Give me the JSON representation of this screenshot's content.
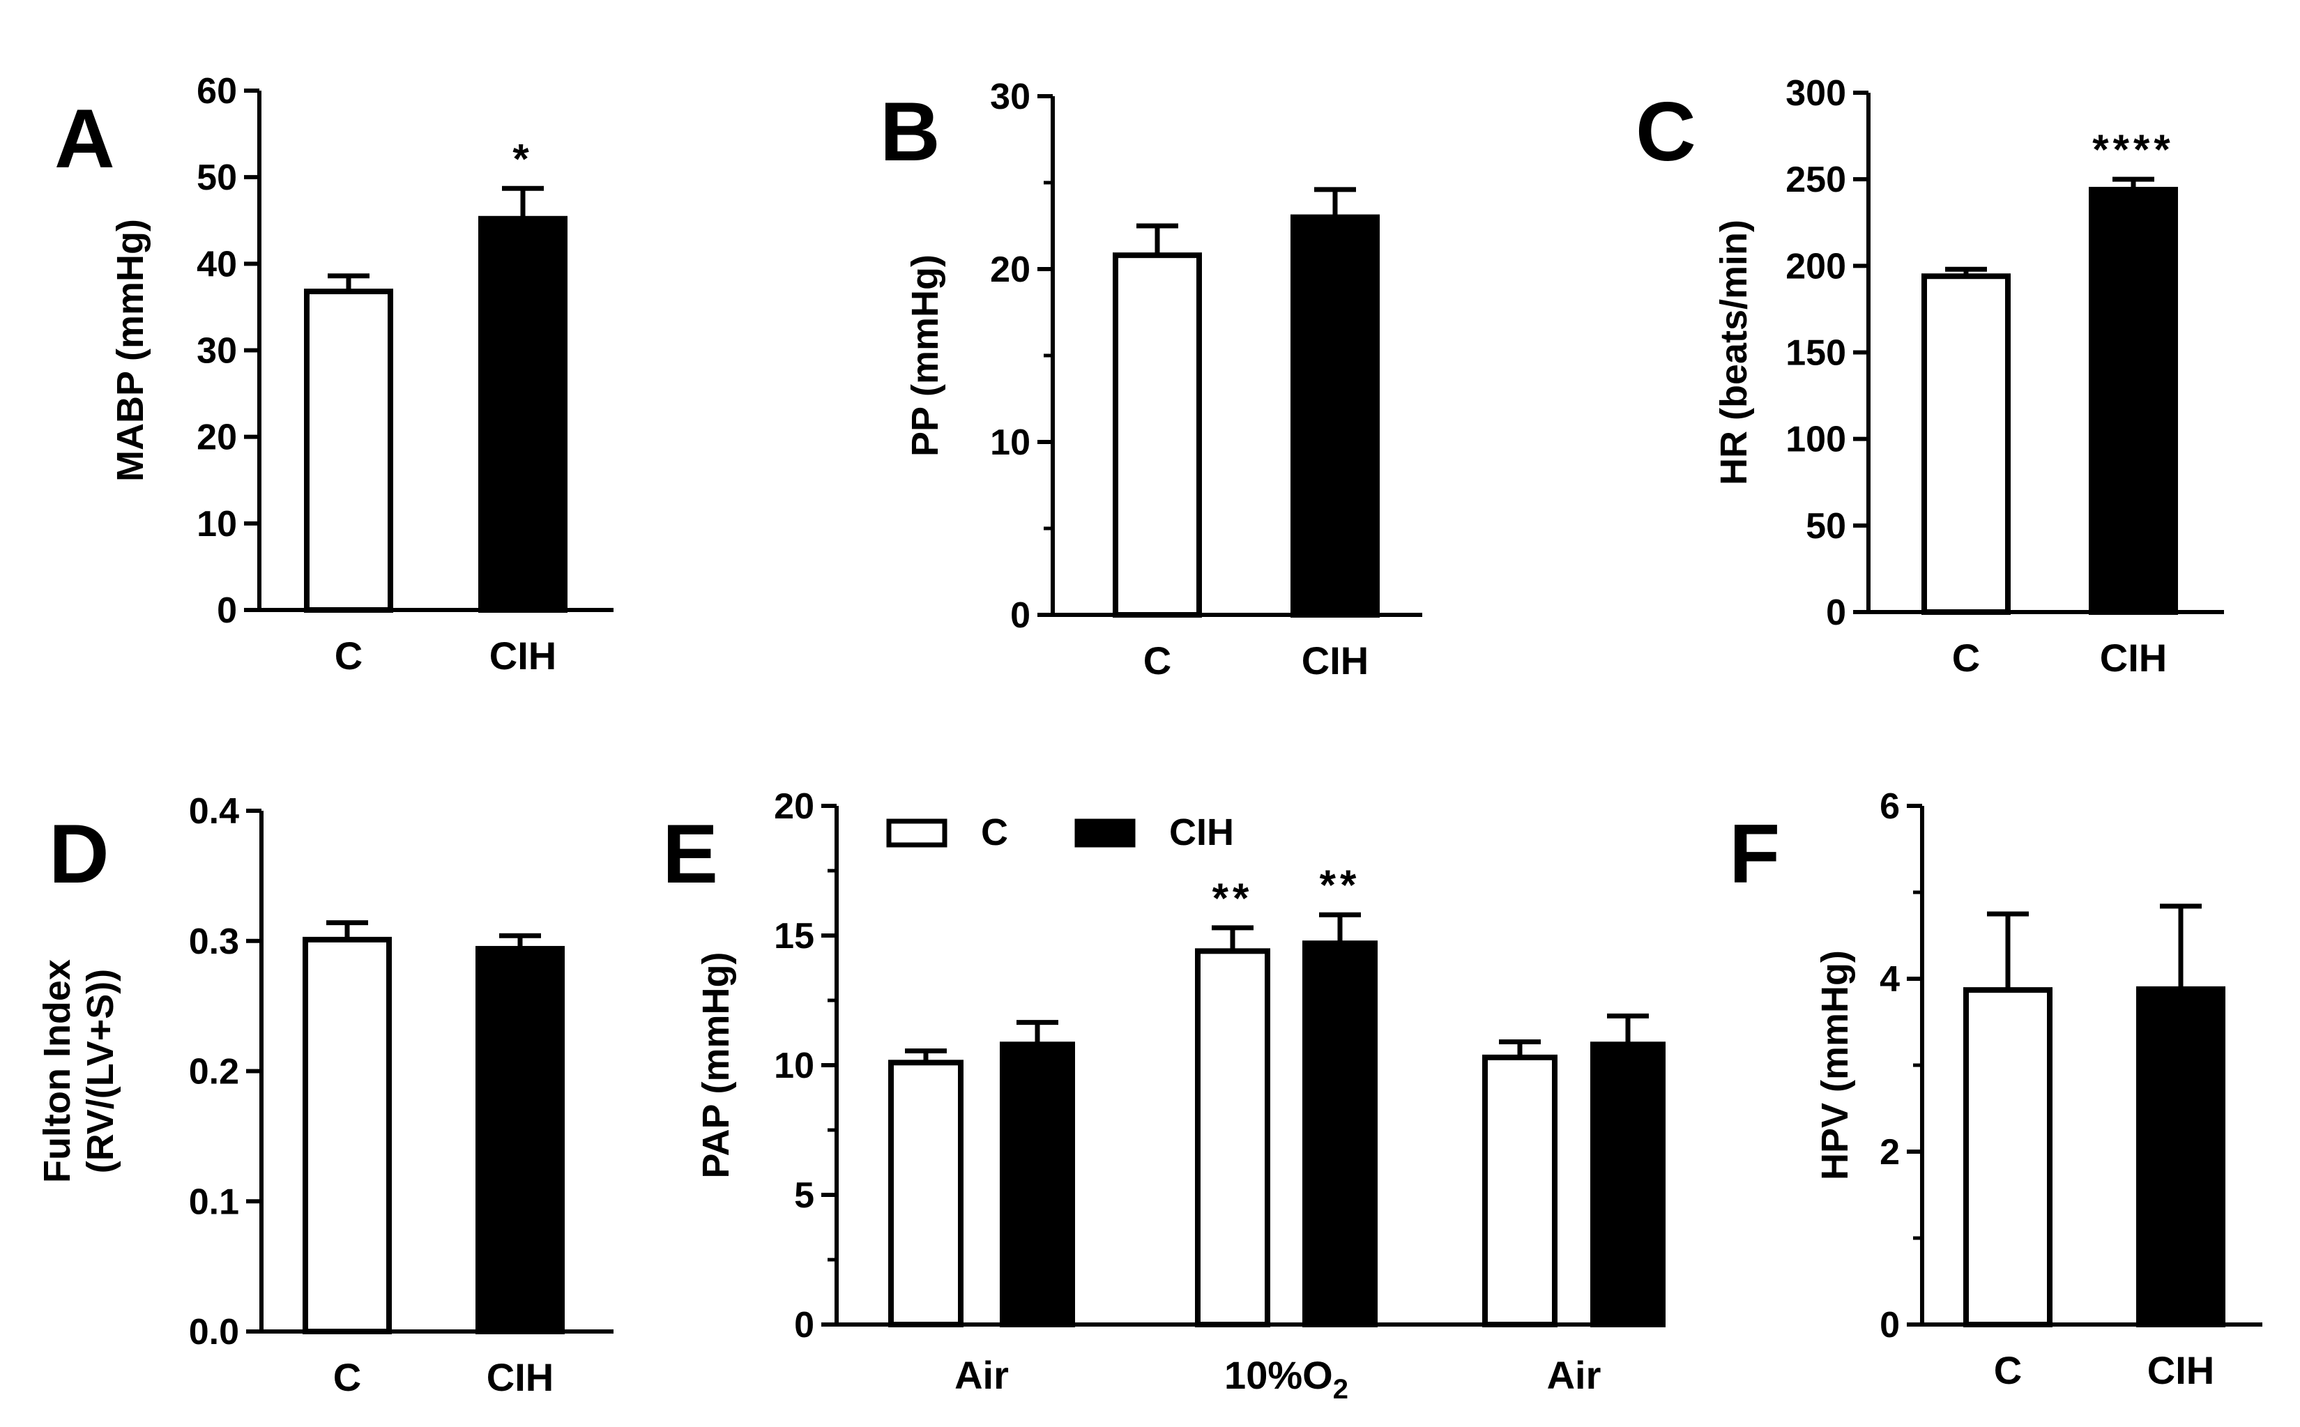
{
  "chart_data": [
    {
      "panel": "A",
      "type": "bar",
      "categories": [
        "C",
        "CIH"
      ],
      "values": [
        36.8,
        45.2
      ],
      "errors": [
        1.8,
        3.5
      ],
      "fills": [
        "#ffffff",
        "#000000"
      ],
      "significance": [
        "",
        "*"
      ],
      "ylabel": "MABP (mmHg)",
      "ylim": [
        0,
        60
      ],
      "yticks": [
        "0",
        "10",
        "20",
        "30",
        "40",
        "50",
        "60"
      ],
      "minor_ticks": false
    },
    {
      "panel": "B",
      "type": "bar",
      "categories": [
        "C",
        "CIH"
      ],
      "values": [
        20.8,
        23.0
      ],
      "errors": [
        1.7,
        1.6
      ],
      "fills": [
        "#ffffff",
        "#000000"
      ],
      "significance": [
        "",
        ""
      ],
      "ylabel": "PP (mmHg)",
      "ylim": [
        0,
        30
      ],
      "yticks": [
        "0",
        "10",
        "20",
        "30"
      ],
      "minor_ticks": true
    },
    {
      "panel": "C",
      "type": "bar",
      "categories": [
        "C",
        "CIH"
      ],
      "values": [
        194,
        244
      ],
      "errors": [
        4,
        6
      ],
      "fills": [
        "#ffffff",
        "#000000"
      ],
      "significance": [
        "",
        "****"
      ],
      "ylabel": "HR (beats/min)",
      "ylim": [
        0,
        300
      ],
      "yticks": [
        "0",
        "50",
        "100",
        "150",
        "200",
        "250",
        "300"
      ],
      "minor_ticks": false
    },
    {
      "panel": "D",
      "type": "bar",
      "categories": [
        "C",
        "CIH"
      ],
      "values": [
        0.301,
        0.294
      ],
      "errors": [
        0.013,
        0.01
      ],
      "fills": [
        "#ffffff",
        "#000000"
      ],
      "significance": [
        "",
        ""
      ],
      "ylabel_lines": [
        "Fulton Index",
        "(RV/(LV+S))"
      ],
      "ylim": [
        0,
        0.4
      ],
      "yticks": [
        "0.0",
        "0.1",
        "0.2",
        "0.3",
        "0.4"
      ],
      "minor_ticks": false
    },
    {
      "panel": "E",
      "type": "bar",
      "categories": [
        "Air",
        "10%O2",
        "Air"
      ],
      "series": [
        {
          "name": "C",
          "values": [
            10.1,
            14.4,
            10.3
          ],
          "errors": [
            0.45,
            0.9,
            0.6
          ],
          "fill": "#ffffff",
          "significance": [
            "",
            "**",
            ""
          ]
        },
        {
          "name": "CIH",
          "values": [
            10.8,
            14.7,
            10.8
          ],
          "errors": [
            0.85,
            1.1,
            1.1
          ],
          "fill": "#000000",
          "significance": [
            "",
            "**",
            ""
          ]
        }
      ],
      "ylabel": "PAP (mmHg)",
      "ylim": [
        0,
        20
      ],
      "yticks": [
        "0",
        "5",
        "10",
        "15",
        "20"
      ],
      "minor_ticks": true,
      "legend_position": "top"
    },
    {
      "panel": "F",
      "type": "bar",
      "categories": [
        "C",
        "CIH"
      ],
      "values": [
        3.87,
        3.88
      ],
      "errors": [
        0.88,
        0.96
      ],
      "fills": [
        "#ffffff",
        "#000000"
      ],
      "significance": [
        "",
        ""
      ],
      "ylabel": "HPV (mmHg)",
      "ylim": [
        0,
        6
      ],
      "yticks": [
        "0",
        "2",
        "4",
        "6"
      ],
      "minor_ticks": true
    }
  ]
}
